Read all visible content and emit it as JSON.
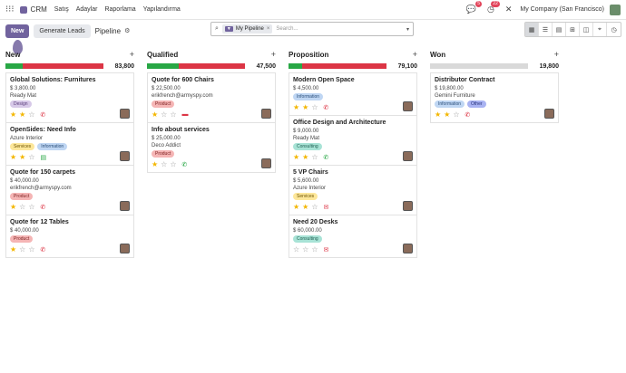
{
  "topbar": {
    "apps_icon": "grid-icon",
    "app_name": "CRM",
    "menus": [
      "Satış",
      "Adaylar",
      "Raporlama",
      "Yapılandırma"
    ],
    "chat_badge": "5",
    "activity_badge": "22",
    "company": "My Company (San Francisco)"
  },
  "control": {
    "new_label": "New",
    "generate_label": "Generate Leads",
    "title": "Pipeline",
    "facet_label": "My Pipeline",
    "search_placeholder": "Search..."
  },
  "columns": [
    {
      "name": "New",
      "total": "83,800",
      "progress": {
        "green": 0.18,
        "red": 0.82,
        "grey": 0
      },
      "cards": [
        {
          "title": "Global Solutions: Furnitures",
          "lines": [
            "$ 3,800.00",
            "Ready Mat"
          ],
          "tags": [
            {
              "label": "Design",
              "bg": "#d7c9e8",
              "fg": "#5a3d7a"
            }
          ],
          "stars": 2,
          "activity": "phone",
          "activity_color": "#dc3545"
        },
        {
          "title": "OpenSides: Need Info",
          "lines": [
            "Azure Interior"
          ],
          "tags": [
            {
              "label": "Services",
              "bg": "#fde79a",
              "fg": "#6b5200"
            },
            {
              "label": "Information",
              "bg": "#bfd6f3",
              "fg": "#2b4f7a"
            }
          ],
          "stars": 2,
          "activity": "doc",
          "activity_color": "#28a745"
        },
        {
          "title": "Quote for 150 carpets",
          "lines": [
            "$ 40,000.00",
            "erikfrench@armyspy.com"
          ],
          "tags": [
            {
              "label": "Product",
              "bg": "#f5b5b5",
              "fg": "#7a1f1f"
            }
          ],
          "stars": 1,
          "activity": "phone",
          "activity_color": "#dc3545"
        },
        {
          "title": "Quote for 12 Tables",
          "lines": [
            "$ 40,000.00"
          ],
          "tags": [
            {
              "label": "Product",
              "bg": "#f5b5b5",
              "fg": "#7a1f1f"
            }
          ],
          "stars": 1,
          "activity": "phone",
          "activity_color": "#dc3545"
        }
      ]
    },
    {
      "name": "Qualified",
      "total": "47,500",
      "progress": {
        "green": 0.32,
        "red": 0.68,
        "grey": 0
      },
      "cards": [
        {
          "title": "Quote for 600 Chairs",
          "lines": [
            "$ 22,500.00",
            "erikfrench@armyspy.com"
          ],
          "tags": [
            {
              "label": "Product",
              "bg": "#f5b5b5",
              "fg": "#7a1f1f"
            }
          ],
          "stars": 1,
          "activity": "list",
          "activity_color": "#dc3545"
        },
        {
          "title": "Info about services",
          "lines": [
            "$ 25,000.00",
            "Deco Addict"
          ],
          "tags": [
            {
              "label": "Product",
              "bg": "#f5b5b5",
              "fg": "#7a1f1f"
            }
          ],
          "stars": 1,
          "activity": "phone",
          "activity_color": "#28a745"
        }
      ]
    },
    {
      "name": "Proposition",
      "total": "79,100",
      "progress": {
        "green": 0.14,
        "red": 0.86,
        "grey": 0
      },
      "cards": [
        {
          "title": "Modern Open Space",
          "lines": [
            "$ 4,500.00"
          ],
          "tags": [
            {
              "label": "Information",
              "bg": "#bfd6f3",
              "fg": "#2b4f7a"
            }
          ],
          "stars": 2,
          "activity": "phone",
          "activity_color": "#dc3545"
        },
        {
          "title": "Office Design and Architecture",
          "lines": [
            "$ 9,000.00",
            "Ready Mat"
          ],
          "tags": [
            {
              "label": "Consulting",
              "bg": "#a8e3d6",
              "fg": "#1e5e50"
            }
          ],
          "stars": 2,
          "activity": "phone",
          "activity_color": "#28a745"
        },
        {
          "title": "5 VP Chairs",
          "lines": [
            "$ 5,600.00",
            "Azure Interior"
          ],
          "tags": [
            {
              "label": "Services",
              "bg": "#fde79a",
              "fg": "#6b5200"
            }
          ],
          "stars": 2,
          "activity": "mail",
          "activity_color": "#dc3545"
        },
        {
          "title": "Need 20 Desks",
          "lines": [
            "$ 60,000.00"
          ],
          "tags": [
            {
              "label": "Consulting",
              "bg": "#a8e3d6",
              "fg": "#1e5e50"
            }
          ],
          "stars": 0,
          "activity": "mail",
          "activity_color": "#dc3545"
        }
      ]
    },
    {
      "name": "Won",
      "total": "19,800",
      "progress": {
        "green": 0,
        "red": 0,
        "grey": 1
      },
      "cards": [
        {
          "title": "Distributor Contract",
          "lines": [
            "$ 19,800.00",
            "Gemini Furniture"
          ],
          "tags": [
            {
              "label": "Information",
              "bg": "#bfd6f3",
              "fg": "#2b4f7a"
            },
            {
              "label": "Other",
              "bg": "#a9b3f2",
              "fg": "#25307a"
            }
          ],
          "stars": 2,
          "activity": "phone",
          "activity_color": "#dc3545"
        }
      ]
    }
  ]
}
